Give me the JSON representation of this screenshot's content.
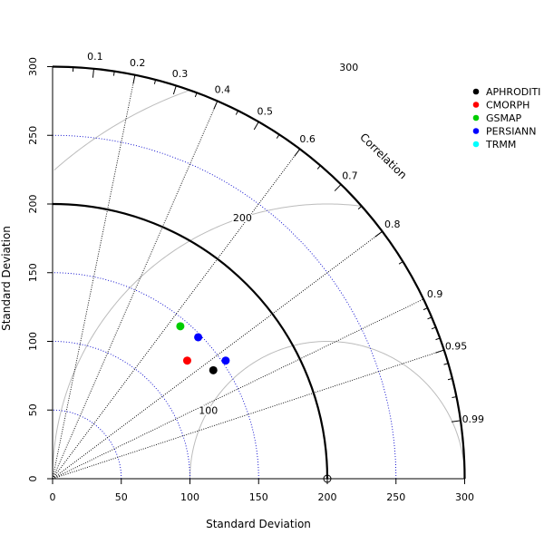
{
  "chart_data": {
    "type": "scatter",
    "subtype": "taylor-diagram",
    "xlabel": "Standard Deviation",
    "ylabel": "Standard Deviation",
    "sd_range": [
      0,
      300
    ],
    "sd_ticks": [
      0,
      50,
      100,
      150,
      200,
      250,
      300
    ],
    "reference": {
      "sd": 200
    },
    "correlation_title": "Correlation",
    "correlation_ticks": [
      0.1,
      0.2,
      0.3,
      0.4,
      0.5,
      0.6,
      0.7,
      0.8,
      0.9,
      0.95,
      0.99
    ],
    "correlation_tick_labels": [
      "0.1",
      "0.2",
      "0.3",
      "0.4",
      "0.5",
      "0.6",
      "0.7",
      "0.8",
      "0.9",
      "0.95",
      "0.99"
    ],
    "correlation_lines": [
      0.2,
      0.4,
      0.6,
      0.8,
      0.9,
      0.95
    ],
    "sd_arcs": [
      50,
      100,
      150,
      250
    ],
    "rms_arcs": [
      100,
      200,
      300
    ],
    "rms_labels": [
      "100",
      "200",
      "300"
    ],
    "series": [
      {
        "name": "APHRODITI",
        "color": "#000000",
        "x": 117,
        "y": 79
      },
      {
        "name": "CMORPH",
        "color": "#ff0000",
        "x": 98,
        "y": 86
      },
      {
        "name": "GSMAP",
        "color": "#00cd00",
        "x": 93,
        "y": 111
      },
      {
        "name": "PERSIANN",
        "color": "#0000ff",
        "points": [
          [
            106,
            103
          ],
          [
            126,
            86
          ]
        ]
      },
      {
        "name": "TRMM",
        "color": "#00ffff",
        "points": []
      }
    ],
    "legend_position": "top-right"
  }
}
